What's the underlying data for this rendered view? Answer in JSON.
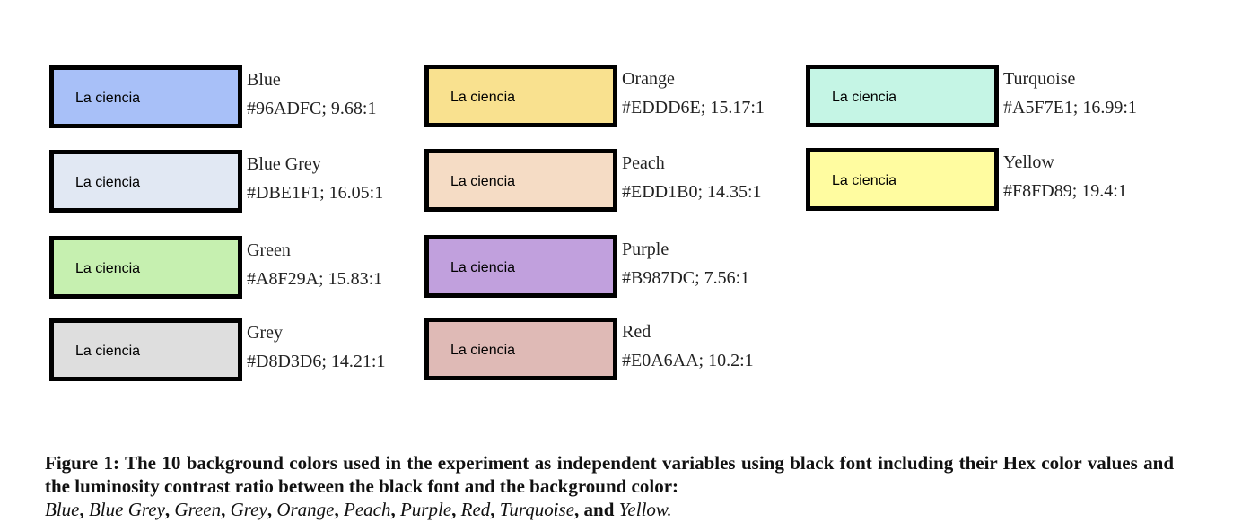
{
  "swatch_text": "La ciencia",
  "colors": [
    {
      "name": "Blue",
      "meta": "#96ADFC; 9.68:1",
      "hex": "#A8C0F8"
    },
    {
      "name": "Blue Grey",
      "meta": "#DBE1F1; 16.05:1",
      "hex": "#E1E8F3"
    },
    {
      "name": "Green",
      "meta": "#A8F29A; 15.83:1",
      "hex": "#C6F0B0"
    },
    {
      "name": "Grey",
      "meta": "#D8D3D6; 14.21:1",
      "hex": "#DEDEDE"
    },
    {
      "name": "Orange",
      "meta": "#EDDD6E; 15.17:1",
      "hex": "#F9E18F"
    },
    {
      "name": "Peach",
      "meta": "#EDD1B0; 14.35:1",
      "hex": "#F5DCC5"
    },
    {
      "name": "Purple",
      "meta": "#B987DC; 7.56:1",
      "hex": "#C1A0DD"
    },
    {
      "name": "Red",
      "meta": "#E0A6AA; 10.2:1",
      "hex": "#DFBAB6"
    },
    {
      "name": "Turquoise",
      "meta": "#A5F7E1; 16.99:1",
      "hex": "#C5F5E5"
    },
    {
      "name": "Yellow",
      "meta": "#F8FD89; 19.4:1",
      "hex": "#FFFCA0"
    }
  ],
  "caption": {
    "lead": "Figure 1:  The 10 background colors used in the experiment as independent variables using black font including their Hex color values and the luminosity contrast ratio between the black font and the background color:",
    "names": [
      "Blue",
      "Blue Grey",
      "Green",
      "Grey",
      "Orange",
      "Peach",
      "Purple",
      "Red",
      "Turquoise",
      "Yellow"
    ],
    "and_word": "and",
    "end": "."
  }
}
